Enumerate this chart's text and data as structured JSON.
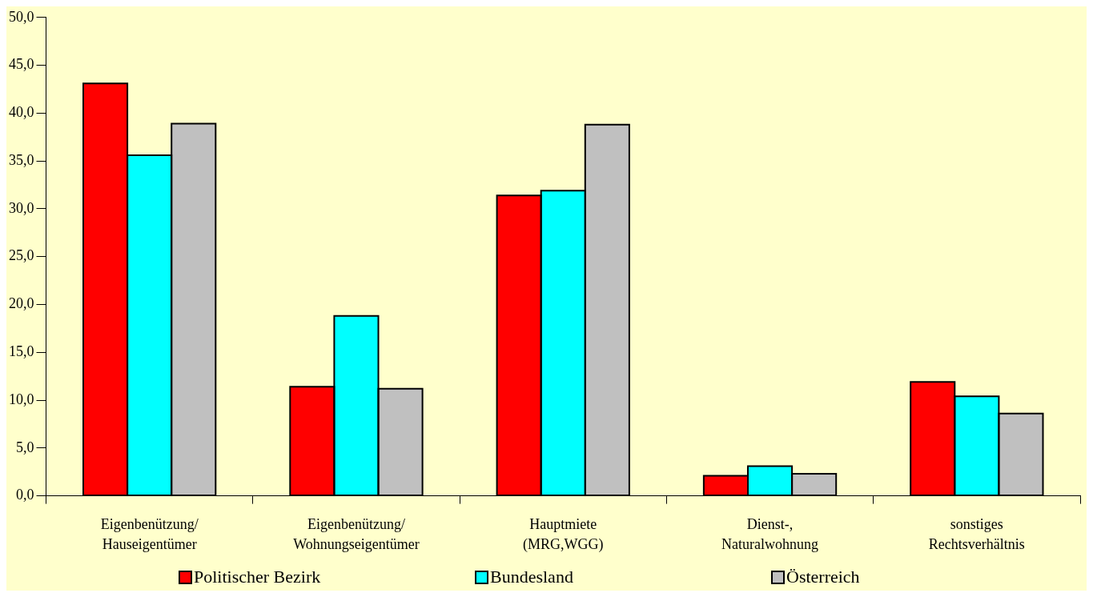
{
  "chart_data": {
    "type": "bar",
    "categories": [
      "Eigenbenützung/\nHauseigentümer",
      "Eigenbenützung/\nWohnungseigentümer",
      "Hauptmiete\n(MRG,WGG)",
      "Dienst-,\nNaturalwohnung",
      "sonstiges\nRechtsverhältnis"
    ],
    "series": [
      {
        "name": "Politischer Bezirk",
        "color": "#ff0000",
        "values": [
          43.1,
          11.4,
          31.4,
          2.1,
          11.9
        ]
      },
      {
        "name": "Bundesland",
        "color": "#00ffff",
        "values": [
          35.6,
          18.8,
          31.9,
          3.1,
          10.4
        ]
      },
      {
        "name": "Österreich",
        "color": "#c0c0c0",
        "values": [
          38.9,
          11.2,
          38.8,
          2.3,
          8.6
        ]
      }
    ],
    "ylim": [
      0,
      50
    ],
    "yticks": [
      {
        "value": 0,
        "label": "0,0"
      },
      {
        "value": 5,
        "label": "5,0"
      },
      {
        "value": 10,
        "label": "10,0"
      },
      {
        "value": 15,
        "label": "15,0"
      },
      {
        "value": 20,
        "label": "20,0"
      },
      {
        "value": 25,
        "label": "25,0"
      },
      {
        "value": 30,
        "label": "30,0"
      },
      {
        "value": 35,
        "label": "35,0"
      },
      {
        "value": 40,
        "label": "40,0"
      },
      {
        "value": 45,
        "label": "45,0"
      },
      {
        "value": 50,
        "label": "50,0"
      }
    ],
    "grid": false,
    "legend": "bottom"
  }
}
